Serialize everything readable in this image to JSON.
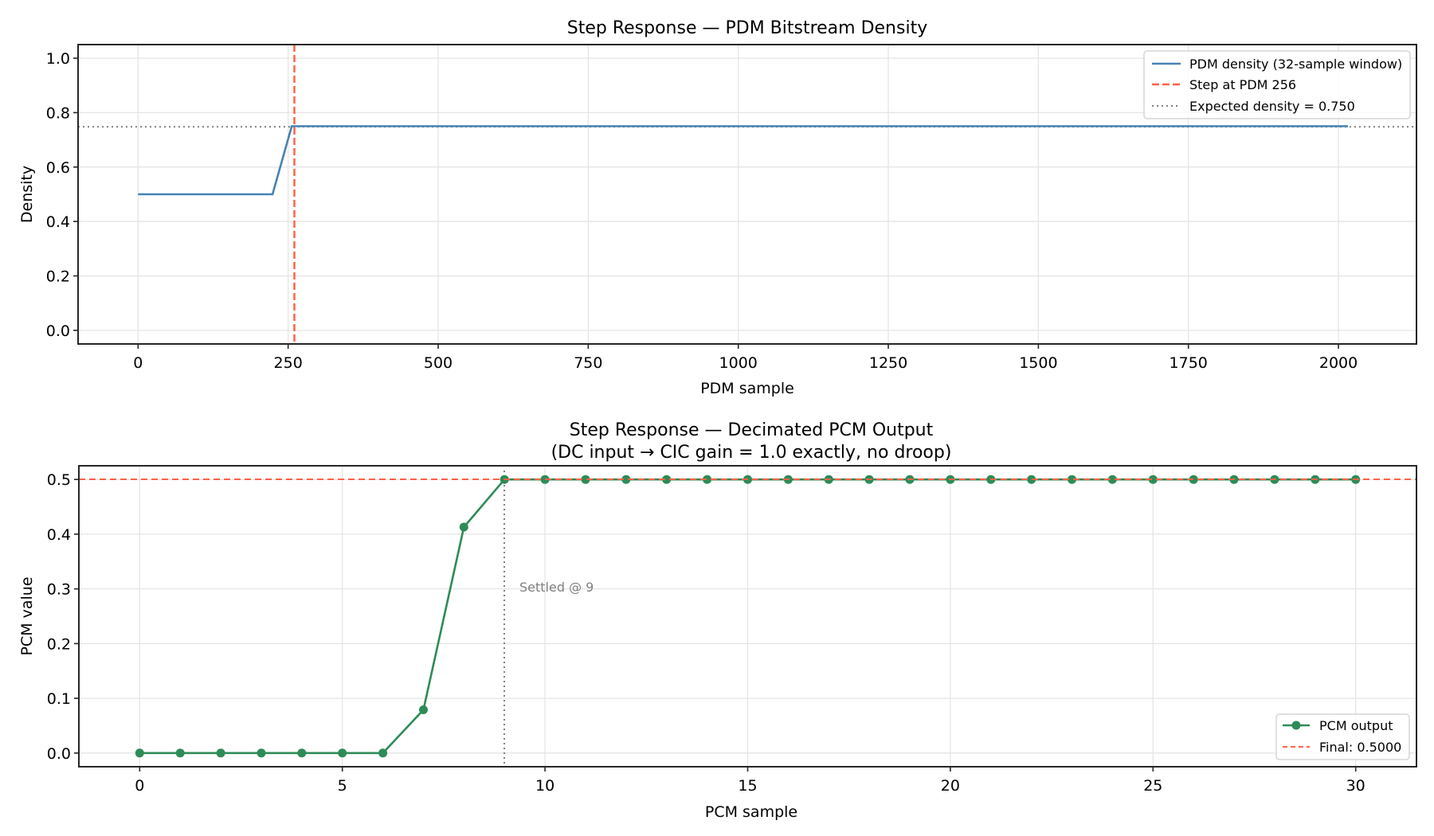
{
  "chart_data": [
    {
      "type": "line",
      "title": "Step Response — PDM Bitstream Density",
      "xlabel": "PDM sample",
      "ylabel": "Density",
      "xlim": [
        -100,
        2130
      ],
      "ylim": [
        -0.05,
        1.05
      ],
      "xticks": [
        0,
        250,
        500,
        750,
        1000,
        1250,
        1500,
        1750,
        2000
      ],
      "yticks": [
        0.0,
        0.2,
        0.4,
        0.6,
        0.8,
        1.0
      ],
      "grid": true,
      "legend_position": "upper right",
      "series": [
        {
          "name": "PDM density (32-sample window)",
          "color": "#4682b4",
          "style": "solid",
          "x": [
            0,
            224,
            256,
            2016
          ],
          "y": [
            0.5,
            0.5,
            0.75,
            0.75
          ]
        }
      ],
      "reference_lines": [
        {
          "name": "Step at PDM 256",
          "orientation": "vertical",
          "value": 256,
          "color": "#ff6347",
          "style": "dashed"
        },
        {
          "name": "Expected density = 0.750",
          "orientation": "horizontal",
          "value": 0.75,
          "color": "#808080",
          "style": "dotted"
        }
      ]
    },
    {
      "type": "line",
      "title": "Step Response — Decimated PCM Output",
      "subtitle": "(DC input → CIC gain = 1.0 exactly, no droop)",
      "xlabel": "PCM sample",
      "ylabel": "PCM value",
      "xlim": [
        -1.5,
        31.5
      ],
      "ylim": [
        -0.025,
        0.525
      ],
      "xticks": [
        0,
        5,
        10,
        15,
        20,
        25,
        30
      ],
      "yticks": [
        0.0,
        0.1,
        0.2,
        0.3,
        0.4,
        0.5
      ],
      "grid": true,
      "legend_position": "lower right",
      "series": [
        {
          "name": "PCM output",
          "color": "#2e8b57",
          "style": "solid",
          "marker": "circle",
          "x": [
            0,
            1,
            2,
            3,
            4,
            5,
            6,
            7,
            8,
            9,
            10,
            11,
            12,
            13,
            14,
            15,
            16,
            17,
            18,
            19,
            20,
            21,
            22,
            23,
            24,
            25,
            26,
            27,
            28,
            29,
            30
          ],
          "y": [
            0,
            0,
            0,
            0,
            0,
            0,
            0,
            0.079,
            0.413,
            0.5,
            0.5,
            0.5,
            0.5,
            0.5,
            0.5,
            0.5,
            0.5,
            0.5,
            0.5,
            0.5,
            0.5,
            0.5,
            0.5,
            0.5,
            0.5,
            0.5,
            0.5,
            0.5,
            0.5,
            0.5,
            0.5
          ]
        }
      ],
      "reference_lines": [
        {
          "name": "Final: 0.5000",
          "orientation": "horizontal",
          "value": 0.5,
          "color": "#ff6347",
          "style": "dashed"
        },
        {
          "name": "Settled",
          "orientation": "vertical",
          "value": 9,
          "color": "#808080",
          "style": "dotted"
        }
      ],
      "annotations": [
        {
          "text": "Settled @ 9",
          "x": 9.3,
          "y": 0.3
        }
      ]
    }
  ],
  "top": {
    "title": "Step Response — PDM Bitstream Density",
    "xlabel": "PDM sample",
    "ylabel": "Density",
    "xtick_labels": [
      "0",
      "250",
      "500",
      "750",
      "1000",
      "1250",
      "1500",
      "1750",
      "2000"
    ],
    "ytick_labels": [
      "0.0",
      "0.2",
      "0.4",
      "0.6",
      "0.8",
      "1.0"
    ],
    "legend": [
      "PDM density (32-sample window)",
      "Step at PDM 256",
      "Expected density = 0.750"
    ]
  },
  "bottom": {
    "title": "Step Response — Decimated PCM Output",
    "subtitle": "(DC input → CIC gain = 1.0 exactly, no droop)",
    "xlabel": "PCM sample",
    "ylabel": "PCM value",
    "xtick_labels": [
      "0",
      "5",
      "10",
      "15",
      "20",
      "25",
      "30"
    ],
    "ytick_labels": [
      "0.0",
      "0.1",
      "0.2",
      "0.3",
      "0.4",
      "0.5"
    ],
    "annotation": "Settled @ 9",
    "legend": [
      "PCM output",
      "Final: 0.5000"
    ]
  },
  "colors": {
    "density_line": "#4682b4",
    "step_line": "#ff6347",
    "expected_line": "#808080",
    "pcm_line": "#2e8b57",
    "grid": "#e5e5e5",
    "axes": "#262626"
  }
}
